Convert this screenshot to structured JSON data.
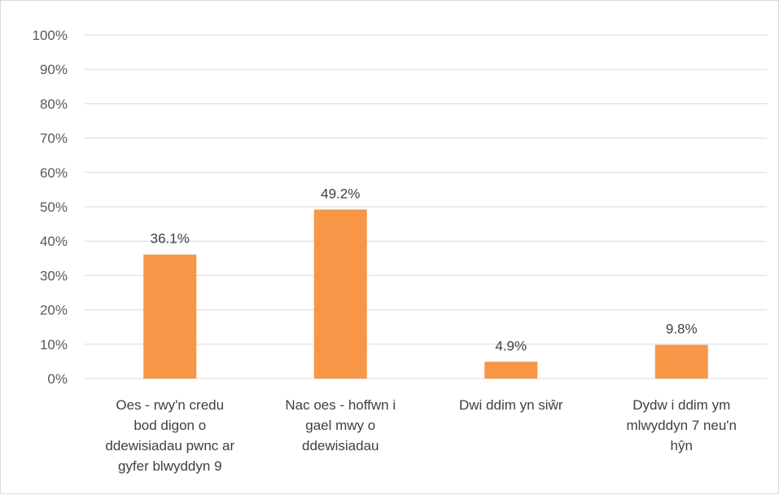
{
  "chart_data": {
    "type": "bar",
    "categories": [
      [
        "Oes - rwy'n credu",
        "bod digon o",
        "ddewisiadau pwnc ar",
        "gyfer blwyddyn 9"
      ],
      [
        "Nac oes - hoffwn i",
        "gael mwy o",
        "ddewisiadau"
      ],
      [
        "Dwi ddim yn siŵr"
      ],
      [
        "Dydw i ddim ym",
        "mlwyddyn 7 neu'n",
        "hŷn"
      ]
    ],
    "values": [
      36.1,
      49.2,
      4.9,
      9.8
    ],
    "data_labels": [
      "36.1%",
      "49.2%",
      "4.9%",
      "9.8%"
    ],
    "ylim": [
      0,
      100
    ],
    "y_ticks": [
      0,
      10,
      20,
      30,
      40,
      50,
      60,
      70,
      80,
      90,
      100
    ],
    "y_tick_labels": [
      "0%",
      "10%",
      "20%",
      "30%",
      "40%",
      "50%",
      "60%",
      "70%",
      "80%",
      "90%",
      "100%"
    ],
    "grid": true,
    "legend": "none",
    "colors": {
      "bar": "#F79646",
      "grid": "#d9d9d9",
      "axis": "#d9d9d9"
    }
  }
}
